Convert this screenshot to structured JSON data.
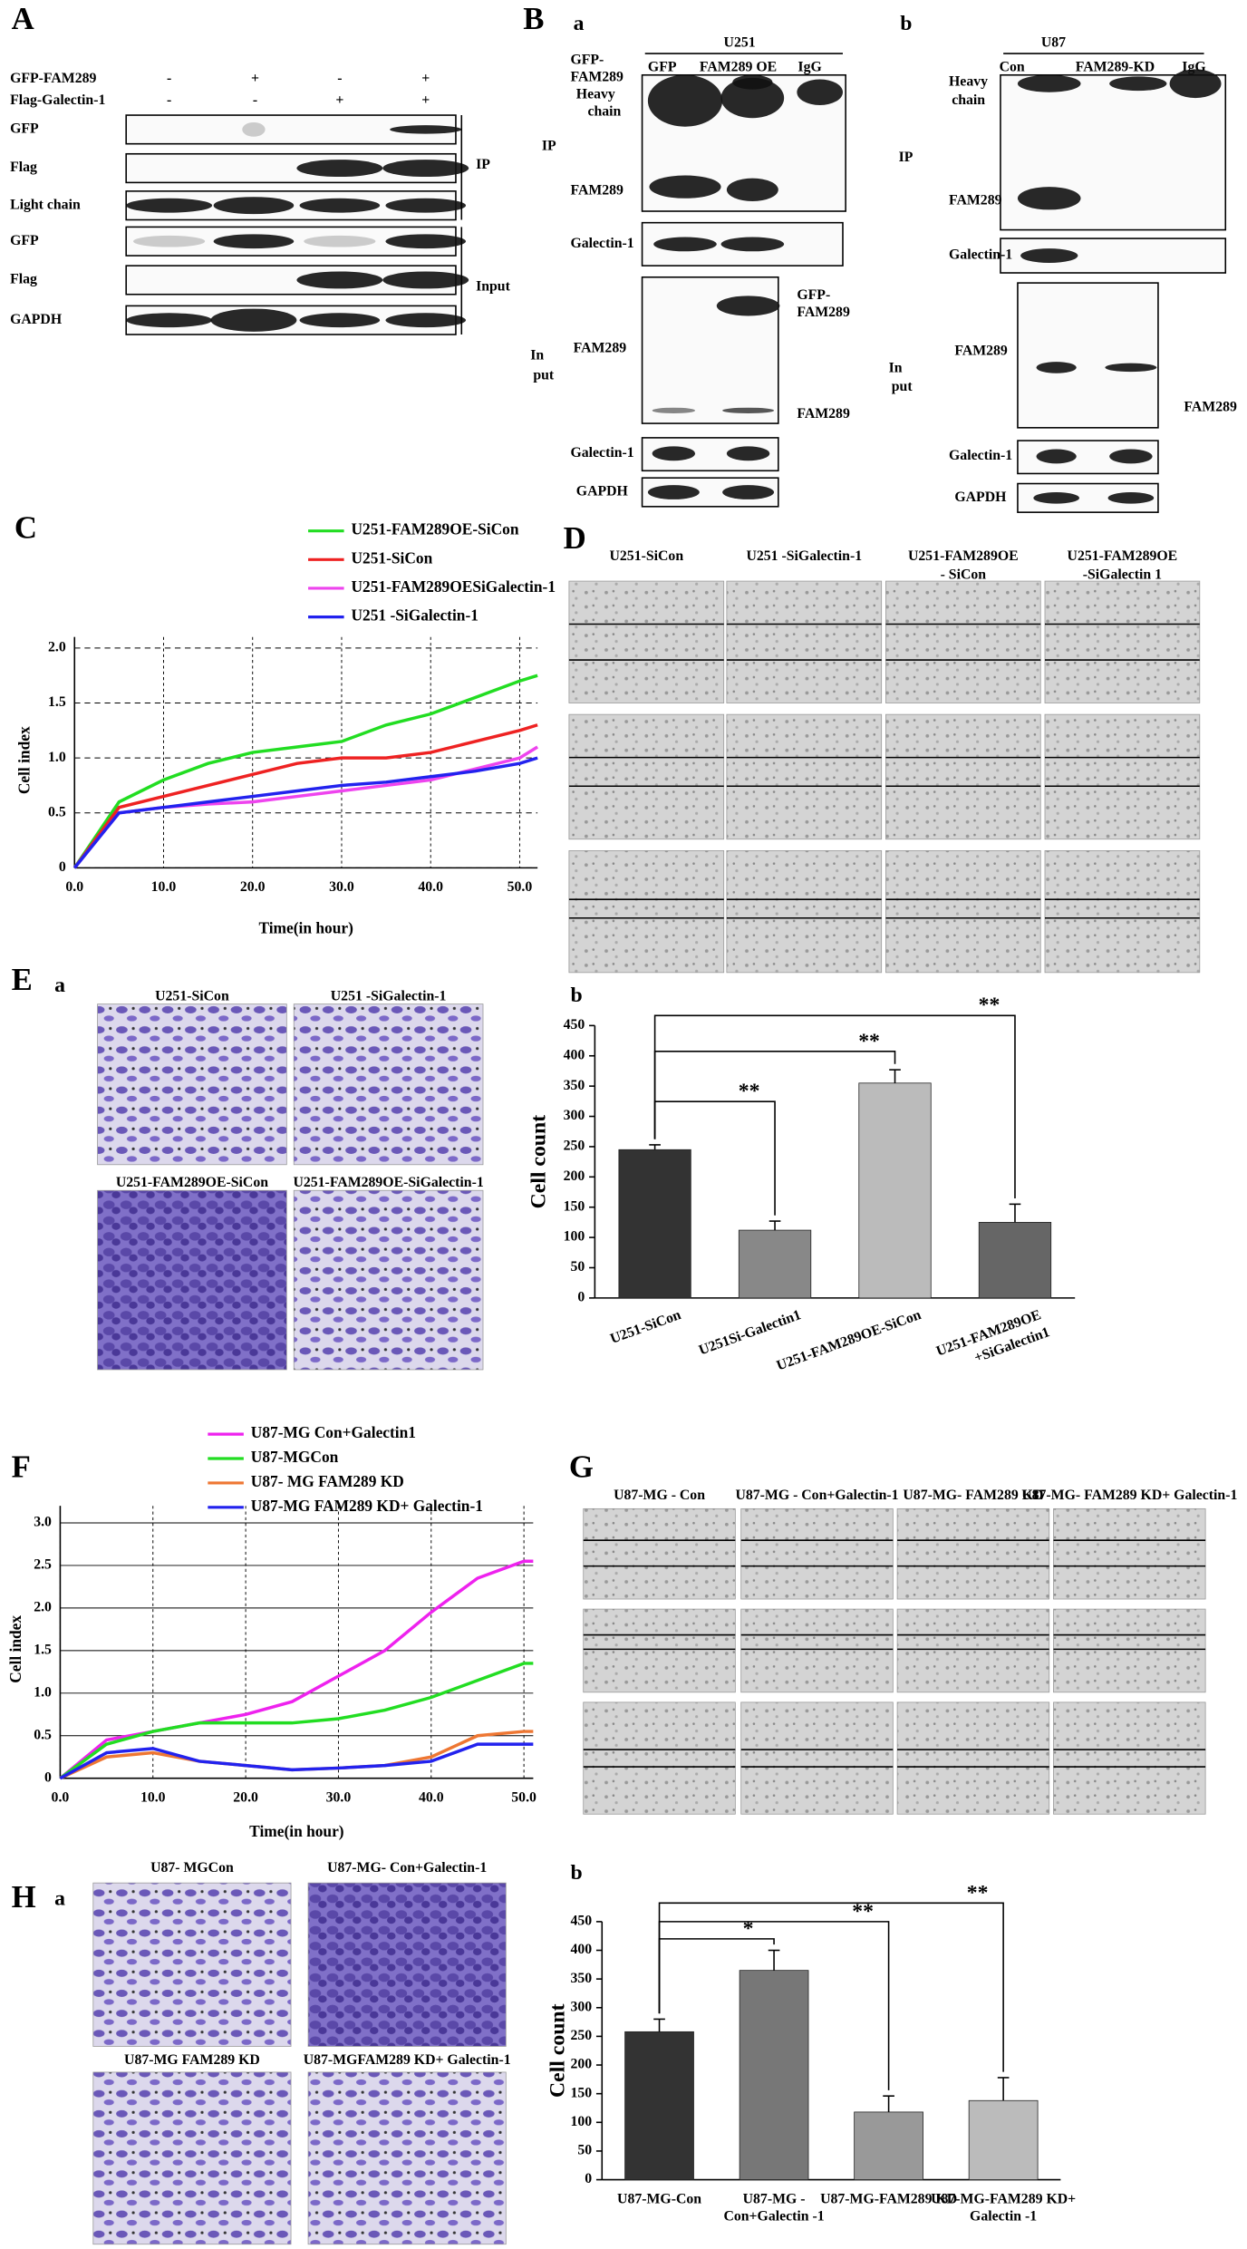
{
  "panel_a": {
    "label": "A",
    "rows": [
      "GFP-FAM289",
      "Flag-Galectin-1"
    ],
    "signs": [
      [
        "-",
        "+",
        "-",
        "+"
      ],
      [
        "-",
        "-",
        "+",
        "+"
      ]
    ],
    "blots": [
      "GFP",
      "Flag",
      "Light chain",
      "GFP",
      "Flag",
      "GAPDH"
    ],
    "groups": [
      "IP",
      "Input"
    ]
  },
  "panel_b": {
    "label": "B",
    "a": {
      "sub": "a",
      "cell": "U251",
      "columns": [
        "GFP",
        "FAM289 OE",
        "IgG"
      ],
      "ip": "IP",
      "ip_labels": [
        "GFP-",
        "FAM289",
        "Heavy",
        "chain",
        "FAM289"
      ],
      "ip_galectin": "Galectin-1",
      "input": [
        "In",
        "put"
      ],
      "input_labels": [
        "FAM289",
        "GFP-",
        "FAM289",
        "FAM289"
      ],
      "input_galectin": "Galectin-1",
      "gapdh": "GAPDH"
    },
    "b": {
      "sub": "b",
      "cell": "U87",
      "columns": [
        "Con",
        "FAM289-KD",
        "IgG"
      ],
      "ip": "IP",
      "ip_labels": [
        "Heavy",
        "chain",
        "FAM289"
      ],
      "ip_galectin": "Galectin-1",
      "input": [
        "In",
        "put"
      ],
      "input_labels": [
        "FAM289",
        "FAM289"
      ],
      "input_galectin": "Galectin-1",
      "gapdh": "GAPDH"
    }
  },
  "panel_d": {
    "label": "D",
    "columns": [
      [
        "U251-SiCon"
      ],
      [
        "U251 -SiGalectin-1"
      ],
      [
        "U251-FAM289OE",
        "- SiCon"
      ],
      [
        "U251-FAM289OE",
        "-SiGalectin 1"
      ]
    ]
  },
  "panel_e": {
    "label": "E",
    "sub": "a",
    "images": [
      "U251-SiCon",
      "U251 -SiGalectin-1",
      "U251-FAM289OE-SiCon",
      "U251-FAM289OE-SiGalectin-1"
    ]
  },
  "panel_g": {
    "label": "G",
    "columns": [
      "U87-MG - Con",
      "U87-MG - Con+Galectin-1",
      "U87-MG- FAM289 KD",
      "U87-MG- FAM289 KD+ Galectin-1"
    ]
  },
  "panel_h": {
    "label": "H",
    "sub": "a",
    "images": [
      "U87- MGCon",
      "U87-MG- Con+Galectin-1",
      "U87-MG FAM289 KD",
      "U87-MGFAM289 KD+ Galectin-1"
    ]
  },
  "chart_data": [
    {
      "type": "line",
      "panel": "C",
      "xlabel": "Time(in hour)",
      "ylabel": "Cell index",
      "grid": true,
      "legend": "top",
      "x": [
        0,
        5,
        10,
        15,
        20,
        25,
        30,
        35,
        40,
        45,
        50,
        52
      ],
      "series": [
        {
          "name": "U251-FAM289OE-SiCon",
          "color": "#22dd22",
          "values": [
            0,
            0.6,
            0.8,
            0.95,
            1.05,
            1.1,
            1.15,
            1.3,
            1.4,
            1.55,
            1.7,
            1.75
          ]
        },
        {
          "name": "U251-SiCon",
          "color": "#ee2222",
          "values": [
            0,
            0.55,
            0.65,
            0.75,
            0.85,
            0.95,
            1.0,
            1.0,
            1.05,
            1.15,
            1.25,
            1.3
          ]
        },
        {
          "name": "U251-FAM289OESiGalectin-1",
          "color": "#ee44ee",
          "values": [
            0,
            0.5,
            0.55,
            0.58,
            0.6,
            0.65,
            0.7,
            0.75,
            0.8,
            0.9,
            1.0,
            1.1
          ]
        },
        {
          "name": "U251 -SiGalectin-1",
          "color": "#2222ee",
          "values": [
            0,
            0.5,
            0.55,
            0.6,
            0.65,
            0.7,
            0.75,
            0.78,
            0.83,
            0.88,
            0.95,
            1.0
          ]
        }
      ],
      "xlim": [
        0,
        52
      ],
      "ylim": [
        0,
        2.1
      ],
      "xticks": [
        {
          "value": 0,
          "label": "0.0"
        },
        {
          "value": 10,
          "label": "10.0"
        },
        {
          "value": 20,
          "label": "20.0"
        },
        {
          "value": 30,
          "label": "30.0"
        },
        {
          "value": 40,
          "label": "40.0"
        },
        {
          "value": 50,
          "label": "50.0"
        }
      ],
      "yticks": [
        0,
        0.5,
        {
          "value": 1,
          "label": "1.0"
        },
        1.5,
        {
          "value": 2,
          "label": "2.0"
        }
      ]
    },
    {
      "type": "bar",
      "panel": "b",
      "ylabel": "Cell count",
      "categories": [
        [
          "U251-SiCon"
        ],
        [
          "U251Si-Galectin1"
        ],
        [
          "U251-FAM289OE-SiCon"
        ],
        [
          "U251-FAM289OE",
          "+SiGalectin1"
        ]
      ],
      "values": [
        245,
        112,
        355,
        125
      ],
      "errors": [
        8,
        15,
        22,
        30
      ],
      "colors": [
        "#333333",
        "#888888",
        "#bbbbbb",
        "#666666"
      ],
      "significance": [
        "**",
        "**",
        "**"
      ],
      "ylim": [
        0,
        450
      ],
      "yticks": [
        0,
        50,
        100,
        150,
        200,
        250,
        300,
        350,
        400,
        450
      ]
    },
    {
      "type": "line",
      "panel": "F",
      "xlabel": "Time(in hour)",
      "ylabel": "Cell index",
      "grid": true,
      "legend": "top",
      "x": [
        0,
        5,
        10,
        15,
        20,
        25,
        30,
        35,
        40,
        45,
        50,
        51
      ],
      "series": [
        {
          "name": "U87-MG Con+Galectin1",
          "color": "#ee22ee",
          "values": [
            0,
            0.45,
            0.55,
            0.65,
            0.75,
            0.9,
            1.2,
            1.5,
            1.95,
            2.35,
            2.55,
            2.55
          ]
        },
        {
          "name": "U87-MGCon",
          "color": "#22dd22",
          "values": [
            0,
            0.4,
            0.55,
            0.65,
            0.65,
            0.65,
            0.7,
            0.8,
            0.95,
            1.15,
            1.35,
            1.35
          ]
        },
        {
          "name": "U87- MG FAM289 KD",
          "color": "#ee7733",
          "values": [
            0,
            0.25,
            0.3,
            0.2,
            0.15,
            0.1,
            0.12,
            0.15,
            0.25,
            0.5,
            0.55,
            0.55
          ]
        },
        {
          "name": "U87-MG FAM289 KD+ Galectin-1",
          "color": "#2222ee",
          "values": [
            0,
            0.3,
            0.35,
            0.2,
            0.15,
            0.1,
            0.12,
            0.15,
            0.2,
            0.4,
            0.4,
            0.4
          ]
        }
      ],
      "xlim": [
        0,
        51
      ],
      "ylim": [
        0,
        3.2
      ],
      "xticks": [
        {
          "value": 0,
          "label": "0.0"
        },
        {
          "value": 10,
          "label": "10.0"
        },
        {
          "value": 20,
          "label": "20.0"
        },
        {
          "value": 30,
          "label": "30.0"
        },
        {
          "value": 40,
          "label": "40.0"
        },
        {
          "value": 50,
          "label": "50.0"
        }
      ],
      "yticks": [
        0,
        0.5,
        {
          "value": 1,
          "label": "1.0"
        },
        1.5,
        {
          "value": 2,
          "label": "2.0"
        },
        2.5,
        {
          "value": 3,
          "label": "3.0"
        }
      ]
    },
    {
      "type": "bar",
      "panel": "b",
      "ylabel": "Cell count",
      "categories": [
        [
          "U87-MG-Con"
        ],
        [
          "U87-MG -",
          "Con+Galectin -1"
        ],
        [
          "U87-MG-FAM289 KD"
        ],
        [
          "U87-MG-FAM289 KD+",
          "Galectin -1"
        ]
      ],
      "values": [
        258,
        365,
        118,
        138
      ],
      "errors": [
        22,
        35,
        28,
        40
      ],
      "colors": [
        "#333333",
        "#777777",
        "#999999",
        "#bbbbbb"
      ],
      "significance": [
        "*",
        "**",
        "**"
      ],
      "ylim": [
        0,
        450
      ],
      "yticks": [
        0,
        50,
        100,
        150,
        200,
        250,
        300,
        350,
        400,
        450
      ]
    }
  ]
}
